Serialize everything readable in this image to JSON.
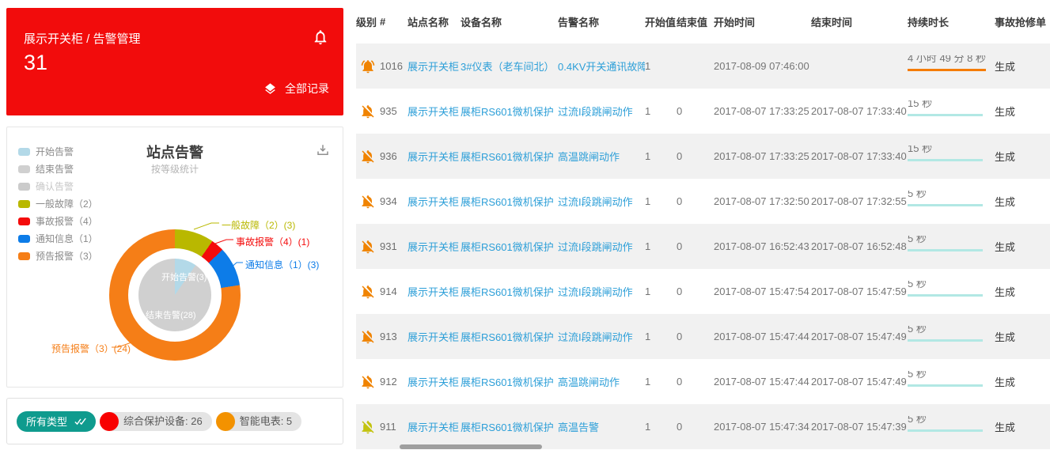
{
  "alarm_card": {
    "breadcrumb": "展示开关柜 / 告警管理",
    "alarm_count": "31",
    "all_records": "全部记录"
  },
  "chart_card": {
    "title": "站点告警",
    "subtitle": "按等级统计",
    "legend": [
      {
        "label": "开始告警",
        "color": "#b3d9e8",
        "dim": false
      },
      {
        "label": "结束告警",
        "color": "#d0d0d0",
        "dim": false
      },
      {
        "label": "确认告警",
        "color": "#cbcbcb",
        "dim": true
      },
      {
        "label": "一般故障（2）",
        "color": "#b9b800",
        "dim": false
      },
      {
        "label": "事故报警（4）",
        "color": "#f40b0b",
        "dim": false
      },
      {
        "label": "通知信息（1）",
        "color": "#0d7ce8",
        "dim": false
      },
      {
        "label": "预告报警（3）",
        "color": "#f57e17",
        "dim": false
      }
    ],
    "chart_data": {
      "type": "pie",
      "title": "站点告警",
      "subtitle": "按等级统计",
      "total": 31,
      "outer_ring": {
        "segments": [
          {
            "label": "一般故障（2）",
            "value": 3,
            "color": "#b9b800",
            "callout": "一般故障（2）(3)"
          },
          {
            "label": "事故报警（4）",
            "value": 1,
            "color": "#f40b0b",
            "callout": "事故报警（4）(1)"
          },
          {
            "label": "通知信息（1）",
            "value": 3,
            "color": "#0d7ce8",
            "callout": "通知信息（1）(3)"
          },
          {
            "label": "预告报警（3）",
            "value": 24,
            "color": "#f57e17",
            "callout": "预告报警（3）(24)"
          }
        ]
      },
      "inner_pie": {
        "segments": [
          {
            "label": "开始告警",
            "value": 3,
            "color": "#b3d9e8",
            "callout": "开始告警(3)"
          },
          {
            "label": "结束告警",
            "value": 28,
            "color": "#d0d0d0",
            "callout": "结束告警(28)"
          }
        ]
      }
    }
  },
  "filter_bar": {
    "all_types": {
      "label": "所有类型",
      "color": "#0f9b8e"
    },
    "chips": [
      {
        "text": "综合保护设备: 26",
        "dot_color": "#f80000"
      },
      {
        "text": "智能电表: 5",
        "dot_color": "#f39200"
      }
    ]
  },
  "table": {
    "columns": [
      "级别",
      "#",
      "站点名称",
      "设备名称",
      "告警名称",
      "开始值",
      "结束值",
      "开始时间",
      "结束时间",
      "持续时长",
      "事故抢修单"
    ],
    "rows": [
      {
        "icon": "bell-ringing-icon",
        "icon_color": "#f08300",
        "id": "1016",
        "site": "展示开关柜",
        "device": "3#仪表（老车间北）",
        "alarm": "0.4KV开关通讯故障",
        "start_value": "1",
        "end_value": "",
        "start_time": "2017-08-09 07:46:00",
        "end_time": "",
        "duration": "4 小时 49 分 8 秒",
        "duration_color": "#f57c00",
        "repair": "生成"
      },
      {
        "icon": "bell-off-icon",
        "icon_color": "#f08300",
        "id": "935",
        "site": "展示开关柜",
        "device": "展柜RS601微机保护",
        "alarm": "过流I段跳闸动作",
        "start_value": "1",
        "end_value": "0",
        "start_time": "2017-08-07 17:33:25",
        "end_time": "2017-08-07 17:33:40",
        "duration": "15 秒",
        "duration_color": "#b2e8e4",
        "repair": "生成"
      },
      {
        "icon": "bell-off-icon",
        "icon_color": "#f08300",
        "id": "936",
        "site": "展示开关柜",
        "device": "展柜RS601微机保护",
        "alarm": "高温跳闸动作",
        "start_value": "1",
        "end_value": "0",
        "start_time": "2017-08-07 17:33:25",
        "end_time": "2017-08-07 17:33:40",
        "duration": "15 秒",
        "duration_color": "#b2e8e4",
        "repair": "生成"
      },
      {
        "icon": "bell-off-icon",
        "icon_color": "#f08300",
        "id": "934",
        "site": "展示开关柜",
        "device": "展柜RS601微机保护",
        "alarm": "过流I段跳闸动作",
        "start_value": "1",
        "end_value": "0",
        "start_time": "2017-08-07 17:32:50",
        "end_time": "2017-08-07 17:32:55",
        "duration": "5 秒",
        "duration_color": "#b2e8e4",
        "repair": "生成"
      },
      {
        "icon": "bell-off-icon",
        "icon_color": "#f08300",
        "id": "931",
        "site": "展示开关柜",
        "device": "展柜RS601微机保护",
        "alarm": "过流I段跳闸动作",
        "start_value": "1",
        "end_value": "0",
        "start_time": "2017-08-07 16:52:43",
        "end_time": "2017-08-07 16:52:48",
        "duration": "5 秒",
        "duration_color": "#b2e8e4",
        "repair": "生成"
      },
      {
        "icon": "bell-off-icon",
        "icon_color": "#f08300",
        "id": "914",
        "site": "展示开关柜",
        "device": "展柜RS601微机保护",
        "alarm": "过流I段跳闸动作",
        "start_value": "1",
        "end_value": "0",
        "start_time": "2017-08-07 15:47:54",
        "end_time": "2017-08-07 15:47:59",
        "duration": "5 秒",
        "duration_color": "#b2e8e4",
        "repair": "生成"
      },
      {
        "icon": "bell-off-icon",
        "icon_color": "#f08300",
        "id": "913",
        "site": "展示开关柜",
        "device": "展柜RS601微机保护",
        "alarm": "过流I段跳闸动作",
        "start_value": "1",
        "end_value": "0",
        "start_time": "2017-08-07 15:47:44",
        "end_time": "2017-08-07 15:47:49",
        "duration": "5 秒",
        "duration_color": "#b2e8e4",
        "repair": "生成"
      },
      {
        "icon": "bell-off-icon",
        "icon_color": "#f08300",
        "id": "912",
        "site": "展示开关柜",
        "device": "展柜RS601微机保护",
        "alarm": "高温跳闸动作",
        "start_value": "1",
        "end_value": "0",
        "start_time": "2017-08-07 15:47:44",
        "end_time": "2017-08-07 15:47:49",
        "duration": "5 秒",
        "duration_color": "#b2e8e4",
        "repair": "生成"
      },
      {
        "icon": "bell-off-icon",
        "icon_color": "#c3c310",
        "id": "911",
        "site": "展示开关柜",
        "device": "展柜RS601微机保护",
        "alarm": "高温告警",
        "start_value": "1",
        "end_value": "0",
        "start_time": "2017-08-07 15:47:34",
        "end_time": "2017-08-07 15:47:39",
        "duration": "5 秒",
        "duration_color": "#b2e8e4",
        "repair": "生成"
      }
    ]
  }
}
